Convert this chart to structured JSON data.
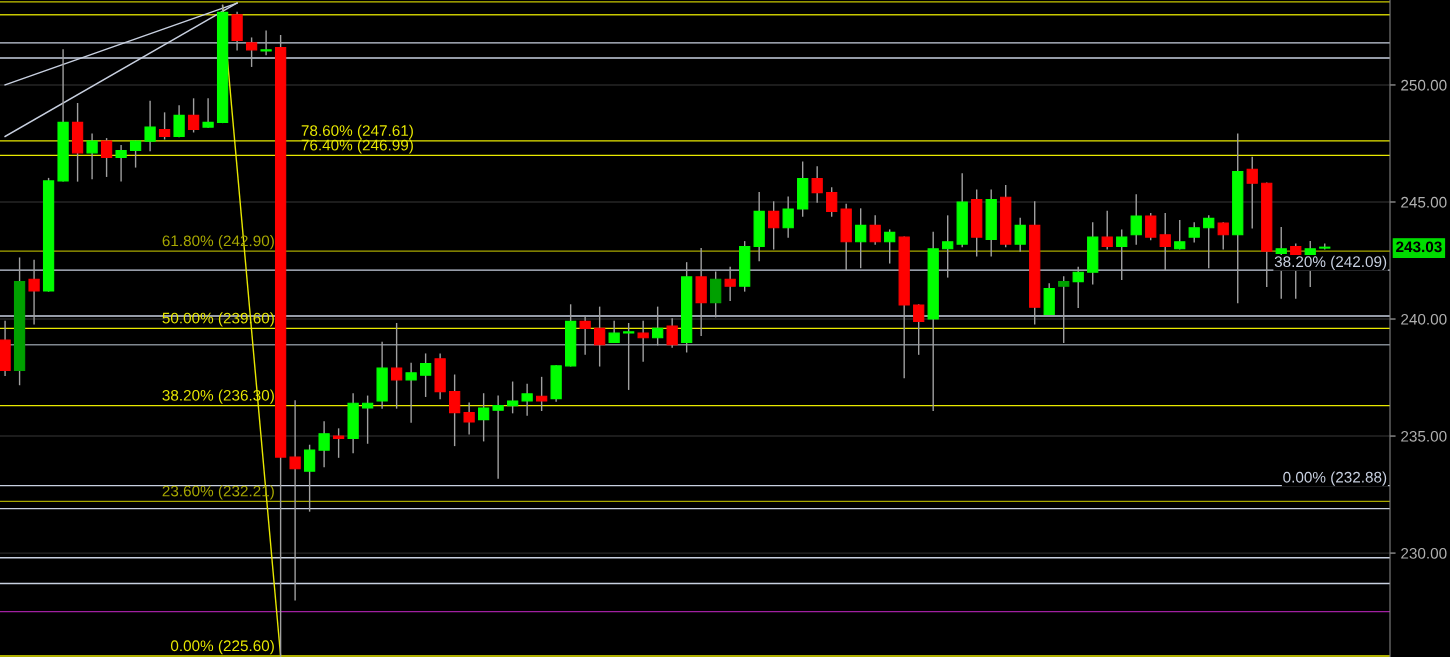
{
  "chart_data": {
    "type": "candlestick",
    "categories": [
      null,
      null,
      null,
      null,
      null,
      null,
      null,
      null,
      null,
      null,
      null,
      null,
      null,
      null,
      null,
      null,
      null,
      null,
      null,
      null,
      null,
      null,
      null,
      null,
      null,
      null,
      null,
      null,
      null,
      null,
      null,
      null,
      null,
      null,
      null,
      null,
      null,
      null,
      null,
      null,
      null,
      null,
      null,
      null,
      null,
      null,
      null,
      null,
      null,
      null,
      null,
      null,
      null,
      null,
      null,
      null,
      null,
      null,
      null,
      null,
      null,
      null,
      null,
      null,
      null,
      null,
      null,
      null,
      null,
      null,
      null,
      null,
      null,
      null,
      null,
      null,
      null,
      null,
      null,
      null,
      null,
      null,
      null,
      null,
      null,
      null,
      null,
      null,
      null,
      null,
      null,
      null
    ],
    "ohlc": [
      [
        239.1,
        239.9,
        237.6,
        237.8
      ],
      [
        237.8,
        242.6,
        237.2,
        241.6
      ],
      [
        241.7,
        242.5,
        239.8,
        241.2
      ],
      [
        241.2,
        246.0,
        241.2,
        245.9
      ],
      [
        245.9,
        251.5,
        245.9,
        248.4
      ],
      [
        248.4,
        249.2,
        245.9,
        247.1
      ],
      [
        247.1,
        247.9,
        246.0,
        247.6
      ],
      [
        247.6,
        247.7,
        246.1,
        246.9
      ],
      [
        246.9,
        247.4,
        245.9,
        247.2
      ],
      [
        247.2,
        247.6,
        246.5,
        247.6
      ],
      [
        247.6,
        249.3,
        247.2,
        248.2
      ],
      [
        248.1,
        248.8,
        247.7,
        247.8
      ],
      [
        247.8,
        249.1,
        247.8,
        248.7
      ],
      [
        248.7,
        249.4,
        248.0,
        248.1
      ],
      [
        248.2,
        249.4,
        248.2,
        248.4
      ],
      [
        248.4,
        253.4,
        248.4,
        253.1
      ],
      [
        253.0,
        253.1,
        251.5,
        251.9
      ],
      [
        251.8,
        252.0,
        250.8,
        251.5
      ],
      [
        251.45,
        252.3,
        251.3,
        251.5
      ],
      [
        251.6,
        252.1,
        225.6,
        234.1
      ],
      [
        234.1,
        236.5,
        228.0,
        233.6
      ],
      [
        233.5,
        234.6,
        231.8,
        234.4
      ],
      [
        234.4,
        235.6,
        233.7,
        235.1
      ],
      [
        235.0,
        235.3,
        234.1,
        234.9
      ],
      [
        234.9,
        236.8,
        234.3,
        236.4
      ],
      [
        236.2,
        236.7,
        234.7,
        236.4
      ],
      [
        236.5,
        239.0,
        236.2,
        237.9
      ],
      [
        237.9,
        239.8,
        236.2,
        237.4
      ],
      [
        237.4,
        238.1,
        235.6,
        237.7
      ],
      [
        237.6,
        238.5,
        236.7,
        238.1
      ],
      [
        238.3,
        238.5,
        236.6,
        236.9
      ],
      [
        236.9,
        237.6,
        234.6,
        236.0
      ],
      [
        236.0,
        236.4,
        235.1,
        235.6
      ],
      [
        235.7,
        236.8,
        234.8,
        236.2
      ],
      [
        236.1,
        236.7,
        233.2,
        236.3
      ],
      [
        236.3,
        237.3,
        236.0,
        236.5
      ],
      [
        236.5,
        237.2,
        235.9,
        236.8
      ],
      [
        236.7,
        237.5,
        236.1,
        236.5
      ],
      [
        236.6,
        238.0,
        236.5,
        238.0
      ],
      [
        238.0,
        240.6,
        238.0,
        239.9
      ],
      [
        239.9,
        240.1,
        238.5,
        239.6
      ],
      [
        239.6,
        240.5,
        238.0,
        238.9
      ],
      [
        239.0,
        239.9,
        239.0,
        239.4
      ],
      [
        239.4,
        239.8,
        237.0,
        239.45
      ],
      [
        239.4,
        239.9,
        238.2,
        239.2
      ],
      [
        239.2,
        240.5,
        238.9,
        239.6
      ],
      [
        239.7,
        240.0,
        238.8,
        238.9
      ],
      [
        239.0,
        242.4,
        238.6,
        241.8
      ],
      [
        241.8,
        243.0,
        239.3,
        240.7
      ],
      [
        240.7,
        242.0,
        240.1,
        241.7
      ],
      [
        241.7,
        242.2,
        240.8,
        241.4
      ],
      [
        241.4,
        243.3,
        241.2,
        243.1
      ],
      [
        243.1,
        245.4,
        242.5,
        244.6
      ],
      [
        244.6,
        245.0,
        243.0,
        243.9
      ],
      [
        243.9,
        245.2,
        243.5,
        244.7
      ],
      [
        244.7,
        246.7,
        244.4,
        246.0
      ],
      [
        246.0,
        246.5,
        245.0,
        245.4
      ],
      [
        245.4,
        245.6,
        244.4,
        244.6
      ],
      [
        244.7,
        244.9,
        242.1,
        243.3
      ],
      [
        243.3,
        244.7,
        242.2,
        244.0
      ],
      [
        244.0,
        244.4,
        243.2,
        243.3
      ],
      [
        243.3,
        243.8,
        242.4,
        243.7
      ],
      [
        243.5,
        243.5,
        237.5,
        240.6
      ],
      [
        240.6,
        240.6,
        238.5,
        239.9
      ],
      [
        240.0,
        243.7,
        236.1,
        243.0
      ],
      [
        243.0,
        244.4,
        241.8,
        243.3
      ],
      [
        243.2,
        246.2,
        243.1,
        245.0
      ],
      [
        245.1,
        245.5,
        242.7,
        243.5
      ],
      [
        243.4,
        245.5,
        242.7,
        245.1
      ],
      [
        245.2,
        245.7,
        243.1,
        243.2
      ],
      [
        243.2,
        244.3,
        242.9,
        244.0
      ],
      [
        244.0,
        245.0,
        239.8,
        240.5
      ],
      [
        240.2,
        241.5,
        240.2,
        241.3
      ],
      [
        241.4,
        241.8,
        239.0,
        241.6
      ],
      [
        241.6,
        242.2,
        240.5,
        242.0
      ],
      [
        242.0,
        244.1,
        241.5,
        243.5
      ],
      [
        243.5,
        244.6,
        243.0,
        243.1
      ],
      [
        243.1,
        243.8,
        241.7,
        243.5
      ],
      [
        243.6,
        245.3,
        243.2,
        244.4
      ],
      [
        244.4,
        244.5,
        243.4,
        243.5
      ],
      [
        243.6,
        244.5,
        242.1,
        243.1
      ],
      [
        243.0,
        244.2,
        243.0,
        243.3
      ],
      [
        243.5,
        244.1,
        243.3,
        243.9
      ],
      [
        243.9,
        244.4,
        242.2,
        244.3
      ],
      [
        244.1,
        244.1,
        243.0,
        243.6
      ],
      [
        243.6,
        247.9,
        240.7,
        246.3
      ],
      [
        246.4,
        246.9,
        243.9,
        245.8
      ],
      [
        245.8,
        245.8,
        241.4,
        242.9
      ],
      [
        242.8,
        243.9,
        240.9,
        243.0
      ],
      [
        243.1,
        243.2,
        240.9,
        242.2
      ],
      [
        242.2,
        243.3,
        241.4,
        243.0
      ],
      [
        243.03,
        243.2,
        243.0,
        243.03
      ]
    ],
    "colors": [
      "#ff0000",
      "#00a000",
      "#ff0000",
      "#00ff00",
      "#00ff00",
      "#ff0000",
      "#00ff00",
      "#ff0000",
      "#00ff00",
      "#00ff00",
      "#00ff00",
      "#ff0000",
      "#00ff00",
      "#ff0000",
      "#00ff00",
      "#00ff00",
      "#ff0000",
      "#ff0000",
      "#00ff00",
      "#ff0000",
      "#ff0000",
      "#00ff00",
      "#00ff00",
      "#ff0000",
      "#00ff00",
      "#00ff00",
      "#00ff00",
      "#ff0000",
      "#00ff00",
      "#00ff00",
      "#ff0000",
      "#ff0000",
      "#ff0000",
      "#00ff00",
      "#00ff00",
      "#00ff00",
      "#00ff00",
      "#ff0000",
      "#00ff00",
      "#00ff00",
      "#ff0000",
      "#ff0000",
      "#00ff00",
      "#00ff00",
      "#ff0000",
      "#00ff00",
      "#ff0000",
      "#00ff00",
      "#ff0000",
      "#00a000",
      "#ff0000",
      "#00ff00",
      "#00ff00",
      "#ff0000",
      "#00ff00",
      "#00ff00",
      "#ff0000",
      "#ff0000",
      "#ff0000",
      "#00ff00",
      "#ff0000",
      "#00ff00",
      "#ff0000",
      "#ff0000",
      "#00ff00",
      "#00ff00",
      "#00ff00",
      "#ff0000",
      "#00ff00",
      "#ff0000",
      "#00ff00",
      "#ff0000",
      "#00ff00",
      "#00a000",
      "#00ff00",
      "#00ff00",
      "#ff0000",
      "#00ff00",
      "#00ff00",
      "#ff0000",
      "#ff0000",
      "#00ff00",
      "#00ff00",
      "#00ff00",
      "#ff0000",
      "#00ff00",
      "#ff0000",
      "#ff0000",
      "#00ff00",
      "#ff0000",
      "#00ff00",
      "#00ff00"
    ],
    "series": [
      {
        "type": "line",
        "color": "#e8e800",
        "values": [
          null,
          null,
          null,
          null,
          null,
          null,
          null,
          null,
          null,
          null,
          null,
          null,
          null,
          null,
          null,
          253.4,
          null,
          null,
          null,
          225.6,
          null,
          null,
          null,
          null,
          null,
          null,
          null,
          null,
          null,
          null,
          null,
          null,
          null,
          null,
          null,
          null,
          null,
          null,
          null,
          null,
          null,
          null,
          null,
          null,
          null,
          null,
          null,
          null,
          null,
          null,
          null,
          null,
          null,
          null,
          null,
          null,
          null,
          null,
          null,
          null,
          null,
          null,
          null,
          null,
          null,
          null,
          null,
          null,
          null,
          null,
          null,
          null,
          null,
          null,
          null,
          null,
          null,
          null,
          null,
          null,
          null,
          null,
          null,
          null,
          null,
          null,
          null,
          null,
          null,
          null,
          null,
          null
        ]
      },
      {
        "type": "line",
        "color": "#c8d0e0",
        "values": [
          250.0,
          null,
          null,
          null,
          null,
          null,
          null,
          null,
          null,
          null,
          null,
          null,
          null,
          null,
          null,
          null,
          253.5,
          null,
          null,
          null,
          null,
          null,
          null,
          null,
          null,
          null,
          null,
          null,
          null,
          null,
          null,
          null,
          null,
          null,
          null,
          null,
          null,
          null,
          null,
          null,
          null,
          null,
          null,
          null,
          null,
          null,
          null,
          null,
          null,
          null,
          null,
          null,
          null,
          null,
          null,
          null,
          null,
          null,
          null,
          null,
          null,
          null,
          null,
          null,
          null,
          null,
          null,
          null,
          null,
          null,
          null,
          null,
          null,
          null,
          null,
          null,
          null,
          null,
          null,
          null,
          null,
          null,
          null,
          null,
          null,
          null,
          null,
          null,
          null,
          null,
          null,
          null
        ]
      },
      {
        "type": "line",
        "color": "#c8d0e0",
        "values": [
          247.8,
          null,
          null,
          null,
          null,
          null,
          null,
          null,
          null,
          null,
          null,
          null,
          null,
          null,
          null,
          null,
          253.5,
          null,
          null,
          null,
          null,
          null,
          null,
          null,
          null,
          null,
          null,
          null,
          null,
          null,
          null,
          null,
          null,
          null,
          null,
          null,
          null,
          null,
          null,
          null,
          null,
          null,
          null,
          null,
          null,
          null,
          null,
          null,
          null,
          null,
          null,
          null,
          null,
          null,
          null,
          null,
          null,
          null,
          null,
          null,
          null,
          null,
          null,
          null,
          null,
          null,
          null,
          null,
          null,
          null,
          null,
          null,
          null,
          null,
          null,
          null,
          null,
          null,
          null,
          null,
          null,
          null,
          null,
          null,
          null,
          null,
          null,
          null,
          null,
          null,
          null,
          null
        ]
      }
    ],
    "ylim": [
      225.56,
      253.63
    ],
    "yticks": [
      {
        "value": 230,
        "label": "230.00"
      },
      {
        "value": 235,
        "label": "235.00"
      },
      {
        "value": 240,
        "label": "240.00"
      },
      {
        "value": 245,
        "label": "245.00"
      },
      {
        "value": 250,
        "label": "250.00"
      }
    ],
    "grid": "y",
    "tick_labels": "y",
    "ref_lines": [
      {
        "axis": "y",
        "value": 253.55,
        "label": null,
        "color": "#c8c800"
      },
      {
        "axis": "y",
        "value": 253.0,
        "label": null,
        "color": "#c8c800"
      },
      {
        "axis": "y",
        "value": 251.8,
        "label": null,
        "color": "#c8d0e0"
      },
      {
        "axis": "y",
        "value": 251.15,
        "label": null,
        "color": "#c8d0e0"
      },
      {
        "axis": "y",
        "value": 247.61,
        "label": "78.60% (247.61)",
        "color": "#e8e800"
      },
      {
        "axis": "y",
        "value": 246.99,
        "label": "76.40% (246.99)",
        "color": "#e8e800"
      },
      {
        "axis": "y",
        "value": 242.9,
        "label": "61.80% (242.90)",
        "color": "#a8a800"
      },
      {
        "axis": "y",
        "value": 242.09,
        "label": "38.20% (242.09)",
        "color": "#c8d0e0"
      },
      {
        "axis": "y",
        "value": 240.13,
        "label": null,
        "color": "#c8d0e0"
      },
      {
        "axis": "y",
        "value": 239.6,
        "label": "50.00% (239.60)",
        "color": "#e8e800"
      },
      {
        "axis": "y",
        "value": 238.9,
        "label": null,
        "color": "#808890"
      },
      {
        "axis": "y",
        "value": 236.3,
        "label": "38.20% (236.30)",
        "color": "#e8e800"
      },
      {
        "axis": "y",
        "value": 232.88,
        "label": "0.00% (232.88)",
        "color": "#c8d0e0"
      },
      {
        "axis": "y",
        "value": 232.21,
        "label": "23.60% (232.21)",
        "color": "#a8a800"
      },
      {
        "axis": "y",
        "value": 231.9,
        "label": null,
        "color": "#c8d0e0"
      },
      {
        "axis": "y",
        "value": 229.8,
        "label": null,
        "color": "#c8d0e0"
      },
      {
        "axis": "y",
        "value": 228.7,
        "label": null,
        "color": "#c8d0e0"
      },
      {
        "axis": "y",
        "value": 227.5,
        "label": null,
        "color": "#a020a0"
      },
      {
        "axis": "y",
        "value": 225.6,
        "label": "0.00% (225.60)",
        "color": "#e8e800"
      }
    ],
    "annotations": [
      "243.03"
    ]
  }
}
